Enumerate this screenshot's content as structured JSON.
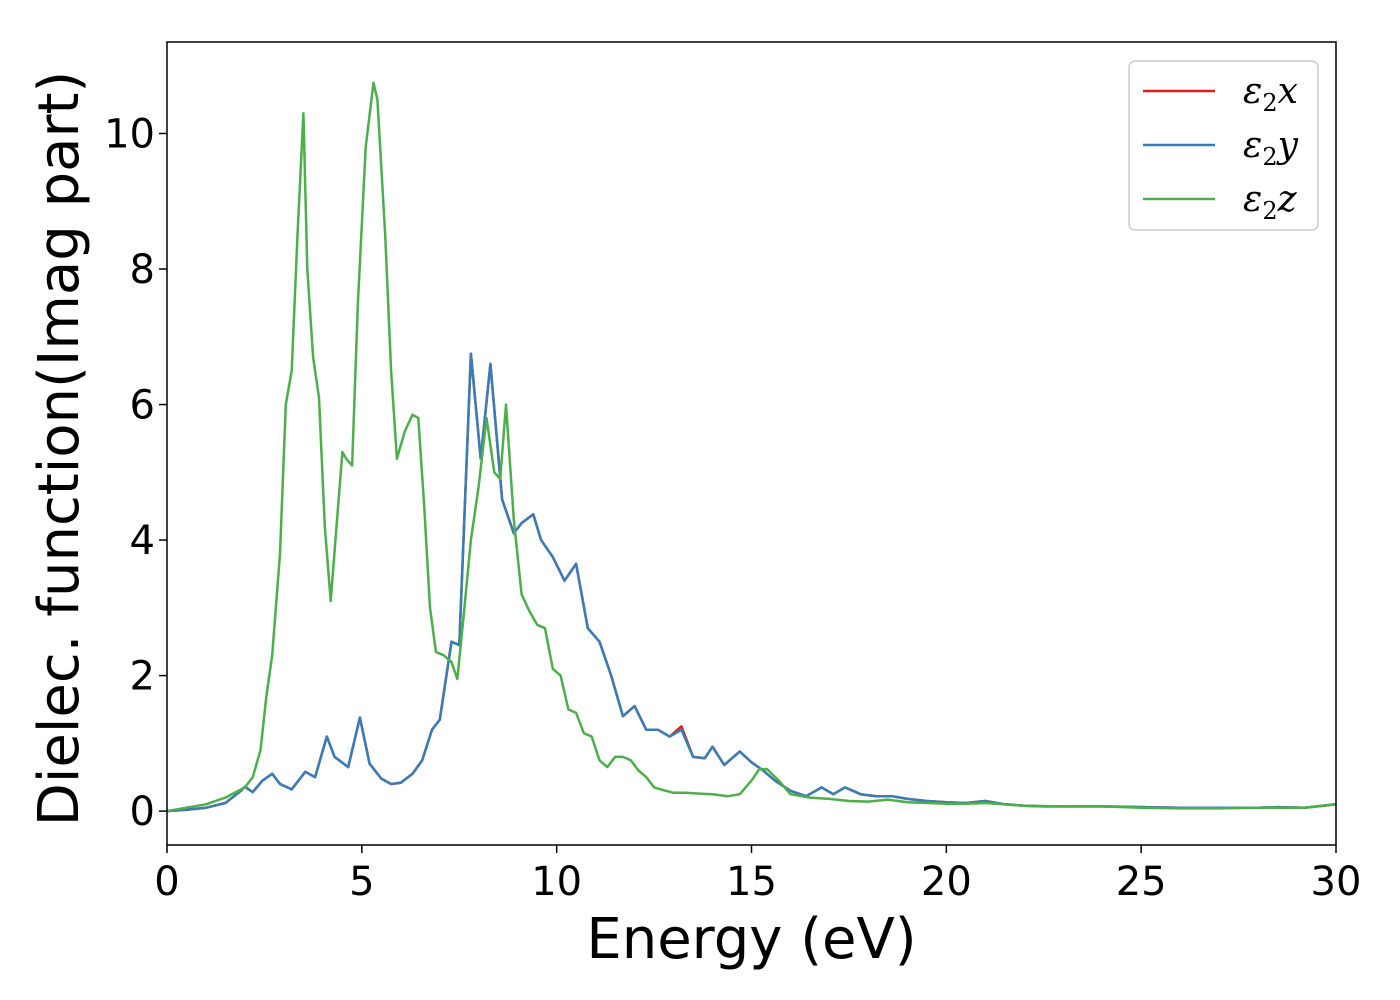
{
  "chart_data": {
    "type": "line",
    "title": "",
    "xlabel": "Energy (eV)",
    "ylabel": "Dielec. function(Imag part)",
    "xlim": [
      0,
      30
    ],
    "ylim": [
      -0.5,
      11.35
    ],
    "xticks": [
      0,
      5,
      10,
      15,
      20,
      25,
      30
    ],
    "xtick_labels": [
      "0",
      "5",
      "10",
      "15",
      "20",
      "25",
      "30"
    ],
    "yticks": [
      0,
      2,
      4,
      6,
      8,
      10
    ],
    "ytick_labels": [
      "0",
      "2",
      "4",
      "6",
      "8",
      "10"
    ],
    "grid": false,
    "legend": {
      "position": "top-right"
    },
    "series": [
      {
        "name": "ε2x",
        "legend_symbol": "ε",
        "legend_sub": "2",
        "legend_var": "x",
        "color": "#e41a1c",
        "x": [
          0,
          0.5,
          1.0,
          1.5,
          1.9,
          2.0,
          2.2,
          2.45,
          2.7,
          2.9,
          3.2,
          3.55,
          3.8,
          4.1,
          4.3,
          4.65,
          4.95,
          5.2,
          5.5,
          5.75,
          6.0,
          6.3,
          6.55,
          6.8,
          7.0,
          7.3,
          7.5,
          7.8,
          8.05,
          8.3,
          8.6,
          8.9,
          9.1,
          9.4,
          9.6,
          9.9,
          10.2,
          10.5,
          10.8,
          11.1,
          11.4,
          11.7,
          12.0,
          12.3,
          12.6,
          12.9,
          13.2,
          13.5,
          13.8,
          14.0,
          14.3,
          14.7,
          15.0,
          15.3,
          15.6,
          16.0,
          16.4,
          16.8,
          17.1,
          17.4,
          17.8,
          18.2,
          18.6,
          19.0,
          19.5,
          20.0,
          20.5,
          21.0,
          21.5,
          22.0,
          22.5,
          23.0,
          24.0,
          25.0,
          26.0,
          27.0,
          28.0,
          28.5,
          29.2,
          30.0
        ],
        "y": [
          0,
          0.02,
          0.05,
          0.12,
          0.3,
          0.36,
          0.28,
          0.45,
          0.55,
          0.4,
          0.32,
          0.58,
          0.5,
          1.1,
          0.8,
          0.65,
          1.38,
          0.7,
          0.48,
          0.4,
          0.42,
          0.55,
          0.75,
          1.2,
          1.35,
          2.5,
          2.45,
          6.75,
          5.2,
          6.6,
          4.6,
          4.1,
          4.25,
          4.38,
          4.0,
          3.75,
          3.4,
          3.65,
          2.7,
          2.5,
          2.0,
          1.4,
          1.55,
          1.2,
          1.2,
          1.1,
          1.25,
          0.8,
          0.78,
          0.95,
          0.68,
          0.88,
          0.72,
          0.6,
          0.45,
          0.3,
          0.22,
          0.35,
          0.25,
          0.35,
          0.25,
          0.22,
          0.22,
          0.18,
          0.15,
          0.13,
          0.12,
          0.15,
          0.1,
          0.08,
          0.07,
          0.07,
          0.07,
          0.06,
          0.05,
          0.05,
          0.05,
          0.06,
          0.05,
          0.1
        ]
      },
      {
        "name": "ε2y",
        "legend_symbol": "ε",
        "legend_sub": "2",
        "legend_var": "y",
        "color": "#377eb8",
        "x": [
          0,
          0.5,
          1.0,
          1.5,
          1.9,
          2.0,
          2.2,
          2.45,
          2.7,
          2.9,
          3.2,
          3.55,
          3.8,
          4.1,
          4.3,
          4.65,
          4.95,
          5.2,
          5.5,
          5.75,
          6.0,
          6.3,
          6.55,
          6.8,
          7.0,
          7.3,
          7.5,
          7.8,
          8.05,
          8.3,
          8.6,
          8.9,
          9.1,
          9.4,
          9.6,
          9.9,
          10.2,
          10.5,
          10.8,
          11.1,
          11.4,
          11.7,
          12.0,
          12.3,
          12.6,
          12.9,
          13.2,
          13.5,
          13.8,
          14.0,
          14.3,
          14.7,
          15.0,
          15.3,
          15.6,
          16.0,
          16.4,
          16.8,
          17.1,
          17.4,
          17.8,
          18.2,
          18.6,
          19.0,
          19.5,
          20.0,
          20.5,
          21.0,
          21.5,
          22.0,
          22.5,
          23.0,
          24.0,
          25.0,
          26.0,
          27.0,
          28.0,
          28.5,
          29.2,
          30.0
        ],
        "y": [
          0,
          0.02,
          0.05,
          0.12,
          0.3,
          0.36,
          0.28,
          0.45,
          0.55,
          0.4,
          0.32,
          0.58,
          0.5,
          1.1,
          0.8,
          0.65,
          1.38,
          0.7,
          0.48,
          0.4,
          0.42,
          0.55,
          0.75,
          1.2,
          1.35,
          2.5,
          2.45,
          6.75,
          5.2,
          6.6,
          4.6,
          4.1,
          4.25,
          4.38,
          4.0,
          3.75,
          3.4,
          3.65,
          2.7,
          2.5,
          2.0,
          1.4,
          1.55,
          1.2,
          1.2,
          1.1,
          1.2,
          0.8,
          0.78,
          0.95,
          0.68,
          0.88,
          0.72,
          0.6,
          0.45,
          0.3,
          0.22,
          0.35,
          0.25,
          0.35,
          0.25,
          0.22,
          0.22,
          0.18,
          0.15,
          0.13,
          0.12,
          0.15,
          0.1,
          0.08,
          0.07,
          0.07,
          0.07,
          0.06,
          0.05,
          0.05,
          0.05,
          0.06,
          0.05,
          0.1
        ]
      },
      {
        "name": "ε2z",
        "legend_symbol": "ε",
        "legend_sub": "2",
        "legend_var": "z",
        "color": "#4daf4a",
        "x": [
          0,
          0.5,
          1.0,
          1.5,
          2.0,
          2.2,
          2.4,
          2.55,
          2.7,
          2.9,
          3.05,
          3.2,
          3.35,
          3.5,
          3.6,
          3.75,
          3.9,
          4.05,
          4.2,
          4.35,
          4.5,
          4.6,
          4.75,
          4.9,
          5.1,
          5.3,
          5.4,
          5.6,
          5.75,
          5.9,
          6.1,
          6.3,
          6.45,
          6.6,
          6.75,
          6.9,
          7.1,
          7.3,
          7.45,
          7.6,
          7.8,
          8.0,
          8.2,
          8.4,
          8.55,
          8.7,
          8.9,
          9.1,
          9.3,
          9.5,
          9.7,
          9.9,
          10.1,
          10.3,
          10.5,
          10.7,
          10.9,
          11.1,
          11.3,
          11.5,
          11.7,
          11.9,
          12.1,
          12.3,
          12.5,
          12.8,
          13.0,
          13.3,
          13.6,
          14.0,
          14.4,
          14.7,
          15.0,
          15.2,
          15.4,
          15.7,
          16.0,
          16.5,
          17.0,
          17.5,
          18.0,
          18.5,
          19.0,
          19.5,
          20.0,
          20.5,
          21.0,
          22.0,
          23.0,
          24.0,
          25.0,
          26.0,
          27.0,
          28.0,
          28.5,
          29.2,
          30.0
        ],
        "y": [
          0,
          0.05,
          0.1,
          0.2,
          0.35,
          0.5,
          0.9,
          1.7,
          2.3,
          3.8,
          6.0,
          6.5,
          8.5,
          10.3,
          8.0,
          6.7,
          6.1,
          4.2,
          3.1,
          4.2,
          5.3,
          5.2,
          5.1,
          7.5,
          9.8,
          10.75,
          10.5,
          8.5,
          6.5,
          5.2,
          5.6,
          5.85,
          5.8,
          4.5,
          3.0,
          2.35,
          2.3,
          2.2,
          1.95,
          2.8,
          4.0,
          4.8,
          5.8,
          5.0,
          4.9,
          6.0,
          4.3,
          3.2,
          2.95,
          2.75,
          2.7,
          2.1,
          2.0,
          1.5,
          1.45,
          1.15,
          1.1,
          0.75,
          0.65,
          0.8,
          0.8,
          0.75,
          0.6,
          0.5,
          0.35,
          0.3,
          0.27,
          0.27,
          0.26,
          0.25,
          0.22,
          0.25,
          0.45,
          0.62,
          0.62,
          0.45,
          0.25,
          0.2,
          0.18,
          0.15,
          0.14,
          0.17,
          0.13,
          0.12,
          0.11,
          0.11,
          0.12,
          0.08,
          0.07,
          0.07,
          0.05,
          0.04,
          0.04,
          0.05,
          0.05,
          0.05,
          0.1
        ]
      }
    ]
  }
}
